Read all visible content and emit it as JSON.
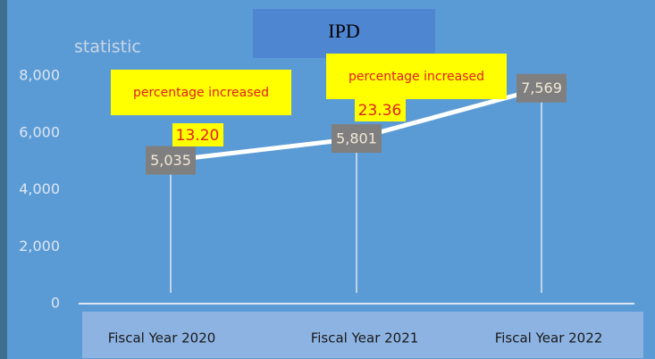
{
  "chart_data": {
    "type": "line",
    "title": "IPD",
    "ylabel": "statistic",
    "categories": [
      "Fiscal Year 2020",
      "Fiscal Year 2021",
      "Fiscal Year 2022"
    ],
    "values": [
      5035,
      5801,
      7569
    ],
    "value_labels": [
      "5,035",
      "5,801",
      "7,569"
    ],
    "color": "#ffffff",
    "ylim": [
      0,
      8000
    ],
    "yticks": [
      0,
      {
        "value": 2000,
        "label": "2,000"
      },
      {
        "value": 4000,
        "label": "4,000"
      },
      {
        "value": 6000,
        "label": "6,000"
      },
      {
        "value": 8000,
        "label": "8,000"
      }
    ],
    "annotations": [
      {
        "text": "percentage increased",
        "value": 13.2,
        "label": "13.20"
      },
      {
        "text": "percentage increased",
        "value": 23.36,
        "label": "23.36"
      }
    ]
  }
}
